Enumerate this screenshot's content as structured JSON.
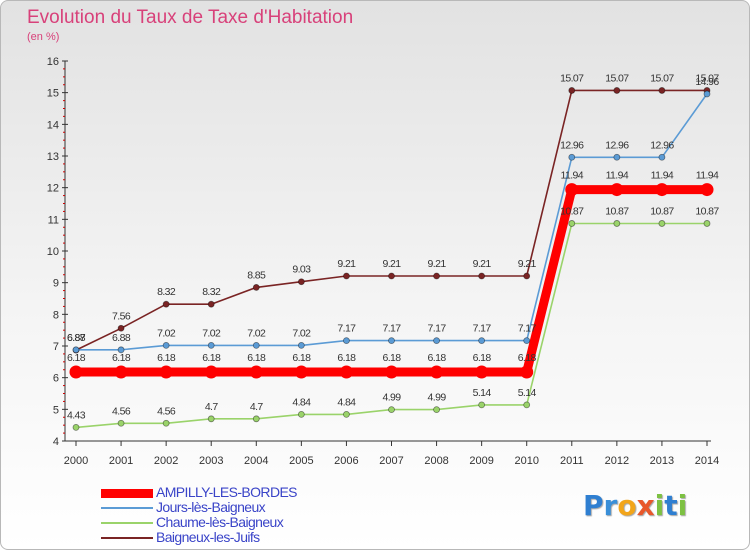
{
  "chart_data": {
    "type": "line",
    "title": "Evolution du Taux de Taxe d'Habitation",
    "unit": "(en %)",
    "x": [
      "2000",
      "2001",
      "2002",
      "2003",
      "2004",
      "2005",
      "2006",
      "2007",
      "2008",
      "2009",
      "2010",
      "2011",
      "2012",
      "2013",
      "2014"
    ],
    "ylim": [
      4,
      16
    ],
    "yticks": [
      "4",
      "5",
      "6",
      "7",
      "8",
      "9",
      "10",
      "11",
      "12",
      "13",
      "14",
      "15",
      "16"
    ],
    "grid": false,
    "legend_position": "bottom-left",
    "series": [
      {
        "name": "AMPILLY-LES-BORDES",
        "color": "#ff0000",
        "values": [
          6.18,
          6.18,
          6.18,
          6.18,
          6.18,
          6.18,
          6.18,
          6.18,
          6.18,
          6.18,
          6.18,
          11.94,
          11.94,
          11.94,
          11.94
        ],
        "labels": [
          "6.18",
          "6.18",
          "6.18",
          "6.18",
          "6.18",
          "6.18",
          "6.18",
          "6.18",
          "6.18",
          "6.18",
          "6.18",
          "11.94",
          "11.94",
          "11.94",
          "11.94"
        ]
      },
      {
        "name": "Jours-lès-Baigneux",
        "color": "#5b9bd5",
        "values": [
          6.88,
          6.88,
          7.02,
          7.02,
          7.02,
          7.02,
          7.17,
          7.17,
          7.17,
          7.17,
          7.17,
          12.96,
          12.96,
          12.96,
          14.96
        ],
        "labels": [
          "6.88",
          "6.88",
          "7.02",
          "7.02",
          "7.02",
          "7.02",
          "7.17",
          "7.17",
          "7.17",
          "7.17",
          "7.17",
          "12.96",
          "12.96",
          "12.96",
          "14.96"
        ]
      },
      {
        "name": "Chaume-lès-Baigneux",
        "color": "#9ad36a",
        "values": [
          4.43,
          4.56,
          4.56,
          4.7,
          4.7,
          4.84,
          4.84,
          4.99,
          4.99,
          5.14,
          5.14,
          10.87,
          10.87,
          10.87,
          10.87
        ],
        "labels": [
          "4.43",
          "4.56",
          "4.56",
          "4.7",
          "4.7",
          "4.84",
          "4.84",
          "4.99",
          "4.99",
          "5.14",
          "5.14",
          "10.87",
          "10.87",
          "10.87",
          "10.87"
        ]
      },
      {
        "name": "Baigneux-les-Juifs",
        "color": "#7a2424",
        "values": [
          6.87,
          7.56,
          8.32,
          8.32,
          8.85,
          9.03,
          9.21,
          9.21,
          9.21,
          9.21,
          9.21,
          15.07,
          15.07,
          15.07,
          15.07
        ],
        "labels": [
          "6.87",
          "7.56",
          "8.32",
          "8.32",
          "8.85",
          "9.03",
          "9.21",
          "9.21",
          "9.21",
          "9.21",
          "9.21",
          "15.07",
          "15.07",
          "15.07",
          "15.07"
        ]
      }
    ]
  },
  "brand": {
    "letters": [
      "P",
      "r",
      "o",
      "x",
      "i",
      "t",
      "i"
    ],
    "colors": [
      "#2f7fd1",
      "#3a8fd8",
      "#f2a51a",
      "#e8572a",
      "#7dc142",
      "#2f7fd1",
      "#7dc142"
    ]
  }
}
